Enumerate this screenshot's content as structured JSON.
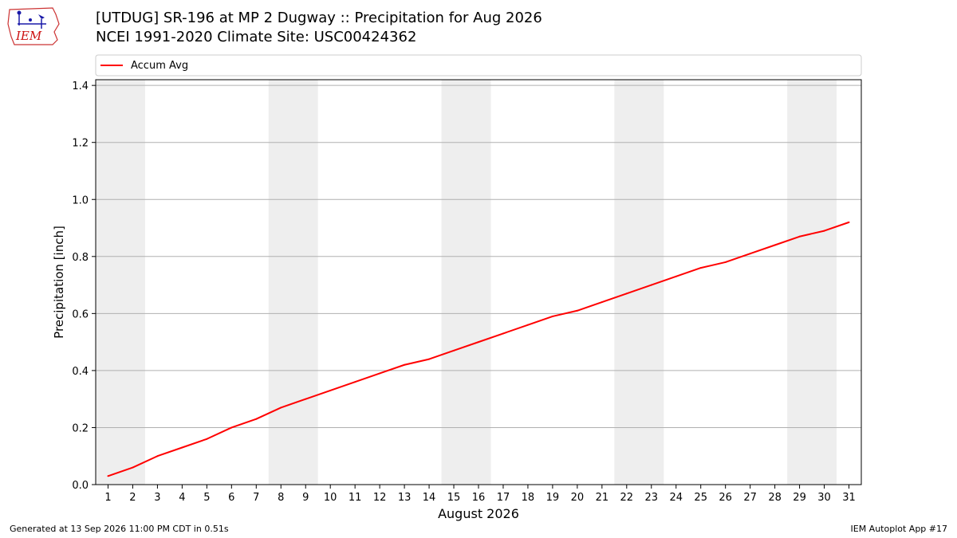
{
  "header": {
    "logo_text": "IEM",
    "title_line1": "[UTDUG] SR-196 at MP 2 Dugway  :: Precipitation for Aug 2026",
    "title_line2": "NCEI 1991-2020 Climate Site: USC00424362"
  },
  "footer": {
    "generated": "Generated at 13 Sep 2026 11:00 PM CDT in 0.51s",
    "app": "IEM Autoplot App #17"
  },
  "chart_data": {
    "type": "line",
    "xlabel": "August 2026",
    "ylabel": "Precipitation [inch]",
    "x": [
      1,
      2,
      3,
      4,
      5,
      6,
      7,
      8,
      9,
      10,
      11,
      12,
      13,
      14,
      15,
      16,
      17,
      18,
      19,
      20,
      21,
      22,
      23,
      24,
      25,
      26,
      27,
      28,
      29,
      30,
      31
    ],
    "xlim": [
      0.5,
      31.5
    ],
    "ylim": [
      0,
      1.42
    ],
    "yticks": [
      0.0,
      0.2,
      0.4,
      0.6,
      0.8,
      1.0,
      1.2,
      1.4
    ],
    "ytick_labels": [
      "0.0",
      "0.2",
      "0.4",
      "0.6",
      "0.8",
      "1.0",
      "1.2",
      "1.4"
    ],
    "grid": "horizontal",
    "legend_position": "top, above plot",
    "weekend_shading": [
      [
        1,
        2
      ],
      [
        8,
        9
      ],
      [
        15,
        16
      ],
      [
        22,
        23
      ],
      [
        29,
        30
      ]
    ],
    "shading_color": "#eeeeee",
    "series": [
      {
        "name": "Accum Avg",
        "color": "#ff0000",
        "values": [
          0.03,
          0.06,
          0.1,
          0.13,
          0.16,
          0.2,
          0.23,
          0.27,
          0.3,
          0.33,
          0.36,
          0.39,
          0.42,
          0.44,
          0.47,
          0.5,
          0.53,
          0.56,
          0.59,
          0.61,
          0.64,
          0.67,
          0.7,
          0.73,
          0.76,
          0.78,
          0.81,
          0.84,
          0.87,
          0.89,
          0.92
        ]
      }
    ]
  }
}
